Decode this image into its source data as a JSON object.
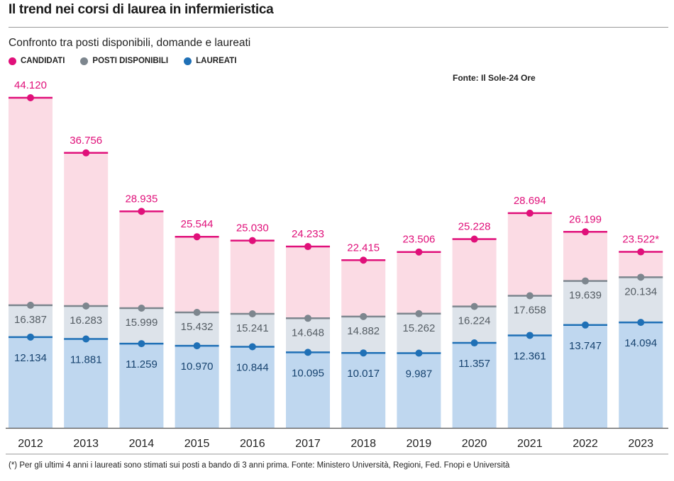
{
  "title": "Il trend nei corsi di laurea in infermieristica",
  "subtitle": "Confronto tra posti disponibili, domande e laureati",
  "legend": [
    {
      "label": "CANDIDATI",
      "color": "#e0107a"
    },
    {
      "label": "POSTI DISPONIBILI",
      "color": "#7d868e"
    },
    {
      "label": "LAUREATI",
      "color": "#1f70b6"
    }
  ],
  "source": "Fonte: Il Sole-24 Ore",
  "footnote": "(*) Per gli ultimi 4 anni i  laureati sono stimati sui posti a bando di 3 anni prima. Fonte: Ministero Università, Regioni, Fed. Fnopi e Università",
  "chart_data": {
    "type": "bar",
    "categories": [
      "2012",
      "2013",
      "2014",
      "2015",
      "2016",
      "2017",
      "2018",
      "2019",
      "2020",
      "2021",
      "2022",
      "2023"
    ],
    "ylim": [
      0,
      45000
    ],
    "grid": false,
    "legend_position": "top-left",
    "series": [
      {
        "name": "CANDIDATI",
        "color": "#e0107a",
        "fill": "#fbdbe4",
        "values": [
          44120,
          36756,
          28935,
          25544,
          25030,
          24233,
          22415,
          23506,
          25228,
          28694,
          26199,
          23522
        ],
        "labels": [
          "44.120",
          "36.756",
          "28.935",
          "25.544",
          "25.030",
          "24.233",
          "22.415",
          "23.506",
          "25.228",
          "28.694",
          "26.199",
          "23.522*"
        ]
      },
      {
        "name": "POSTI DISPONIBILI",
        "color": "#7d868e",
        "fill": "#dde3ea",
        "values": [
          16387,
          16283,
          15999,
          15432,
          15241,
          14648,
          14882,
          15262,
          16224,
          17658,
          19639,
          20134
        ],
        "labels": [
          "16.387",
          "16.283",
          "15.999",
          "15.432",
          "15.241",
          "14.648",
          "14.882",
          "15.262",
          "16.224",
          "17.658",
          "19.639",
          "20.134"
        ]
      },
      {
        "name": "LAUREATI",
        "color": "#1f70b6",
        "fill": "#bfd7ef",
        "values": [
          12134,
          11881,
          11259,
          10970,
          10844,
          10095,
          10017,
          9987,
          11357,
          12361,
          13747,
          14094
        ],
        "labels": [
          "12.134",
          "11.881",
          "11.259",
          "10.970",
          "10.844",
          "10.095",
          "10.017",
          "9.987",
          "11.357",
          "12.361",
          "13.747",
          "14.094"
        ]
      }
    ]
  }
}
